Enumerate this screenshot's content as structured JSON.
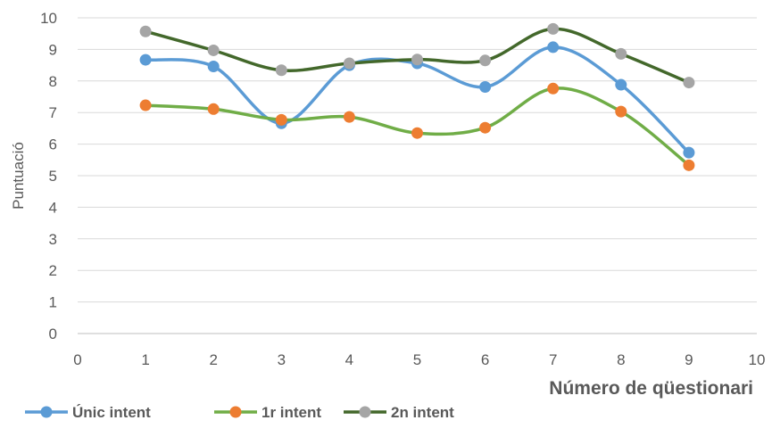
{
  "chart_data": {
    "type": "line",
    "smooth": true,
    "xlabel": "Número de qüestionari",
    "ylabel": "Puntuació",
    "xlim": [
      0,
      10
    ],
    "ylim": [
      0,
      10
    ],
    "x_ticks": [
      "0",
      "1",
      "2",
      "3",
      "4",
      "5",
      "6",
      "7",
      "8",
      "9",
      "10"
    ],
    "y_ticks": [
      "0",
      "1",
      "2",
      "3",
      "4",
      "5",
      "6",
      "7",
      "8",
      "9",
      "10"
    ],
    "grid": "horizontal",
    "legend_position": "bottom-left",
    "x": [
      1,
      2,
      3,
      4,
      5,
      6,
      7,
      8,
      9
    ],
    "series": [
      {
        "name": "Únic intent",
        "line_color": "#5b9bd5",
        "marker_color": "#5b9bd5",
        "values": [
          8.67,
          8.46,
          6.66,
          8.5,
          8.56,
          7.81,
          9.07,
          7.88,
          5.73
        ]
      },
      {
        "name": "1r intent",
        "line_color": "#70ad47",
        "marker_color": "#ed7d31",
        "values": [
          7.23,
          7.11,
          6.77,
          6.86,
          6.35,
          6.52,
          7.76,
          7.03,
          5.33
        ]
      },
      {
        "name": "2n intent",
        "line_color": "#43682b",
        "marker_color": "#a5a5a5",
        "values": [
          9.57,
          8.97,
          8.34,
          8.56,
          8.68,
          8.65,
          9.65,
          8.86,
          7.95
        ]
      }
    ]
  }
}
